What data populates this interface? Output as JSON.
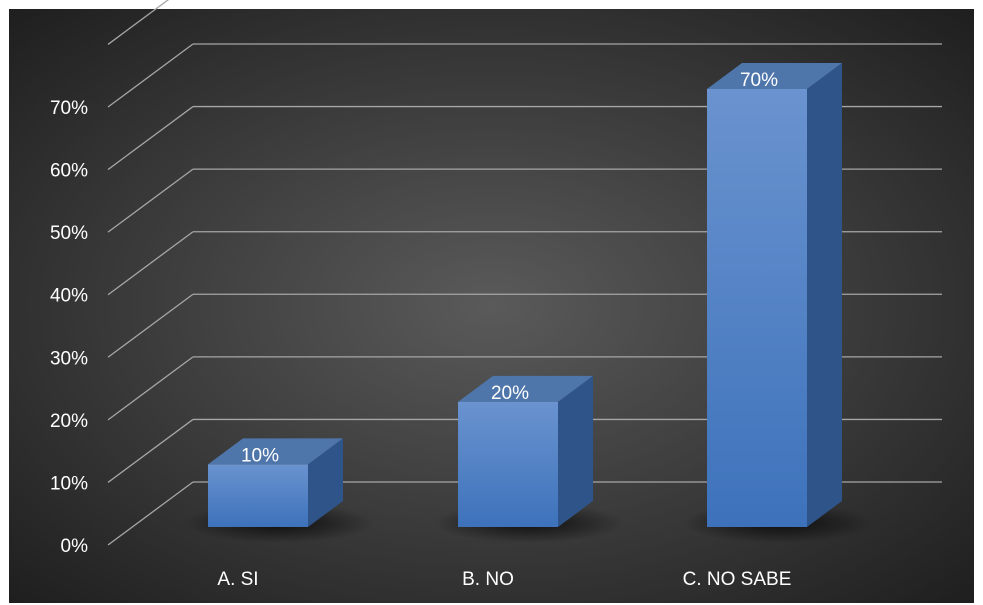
{
  "chart_data": {
    "type": "bar",
    "style": "3d-column",
    "categories": [
      "A. SI",
      "B. NO",
      "C. NO SABE"
    ],
    "values": [
      10,
      20,
      70
    ],
    "data_labels": [
      "10%",
      "20%",
      "70%"
    ],
    "ylim": [
      0,
      70
    ],
    "y_ticks": [
      "0%",
      "10%",
      "20%",
      "30%",
      "40%",
      "50%",
      "60%",
      "70%"
    ],
    "title": "",
    "xlabel": "",
    "ylabel": "",
    "grid": true,
    "legend": "none",
    "colors": {
      "bar_front_top": "#6a93cf",
      "bar_front_bottom": "#3d72bb",
      "bar_side": "#2f5489",
      "bar_top": "#4f76ab",
      "background_center": "#5a5a5a",
      "background_edge": "#1f1f1f",
      "gridline": "#a6a6a6",
      "text": "#ffffff"
    }
  }
}
